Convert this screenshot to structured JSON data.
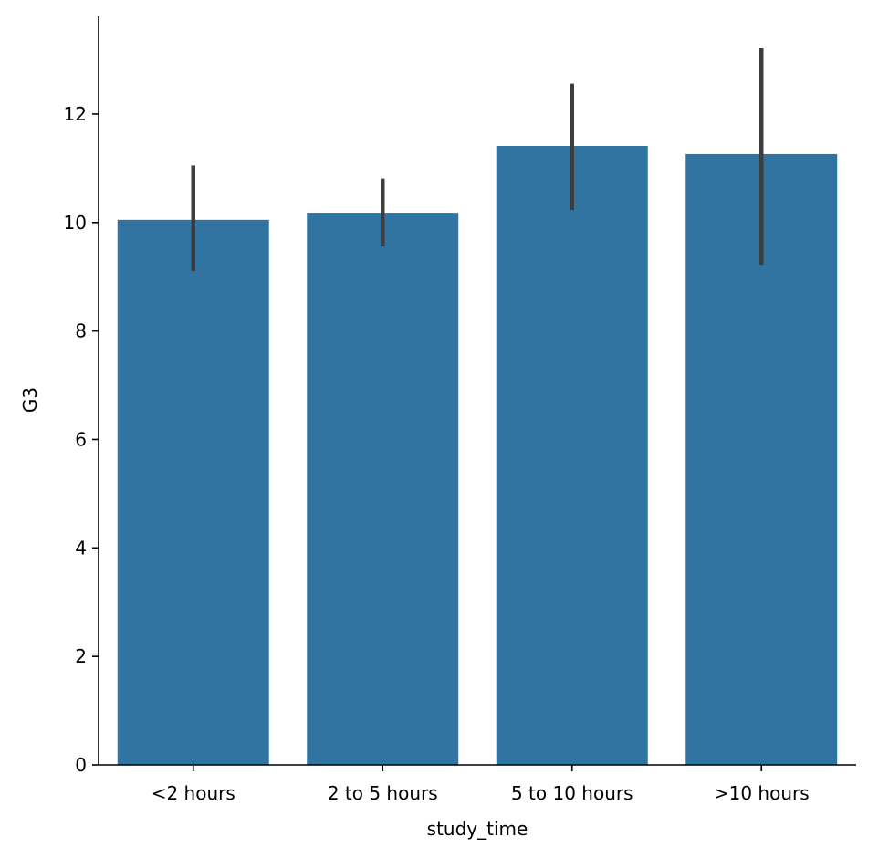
{
  "chart_data": {
    "type": "bar",
    "title": "",
    "xlabel": "study_time",
    "ylabel": "G3",
    "categories": [
      "<2 hours",
      "2 to 5 hours",
      "5 to 10 hours",
      ">10 hours"
    ],
    "values": [
      10.05,
      10.18,
      11.41,
      11.26
    ],
    "error_bars": [
      {
        "low": 9.1,
        "high": 11.05
      },
      {
        "low": 9.56,
        "high": 10.81
      },
      {
        "low": 10.23,
        "high": 12.56
      },
      {
        "low": 9.22,
        "high": 13.21
      }
    ],
    "ylim": [
      0,
      13.8
    ],
    "yticks": [
      0,
      2,
      4,
      6,
      8,
      10,
      12
    ],
    "grid": false,
    "legend": "none",
    "colors": {
      "bar": "#3274a1",
      "error_bar": "#3d3d3d",
      "axis": "#000000"
    }
  }
}
